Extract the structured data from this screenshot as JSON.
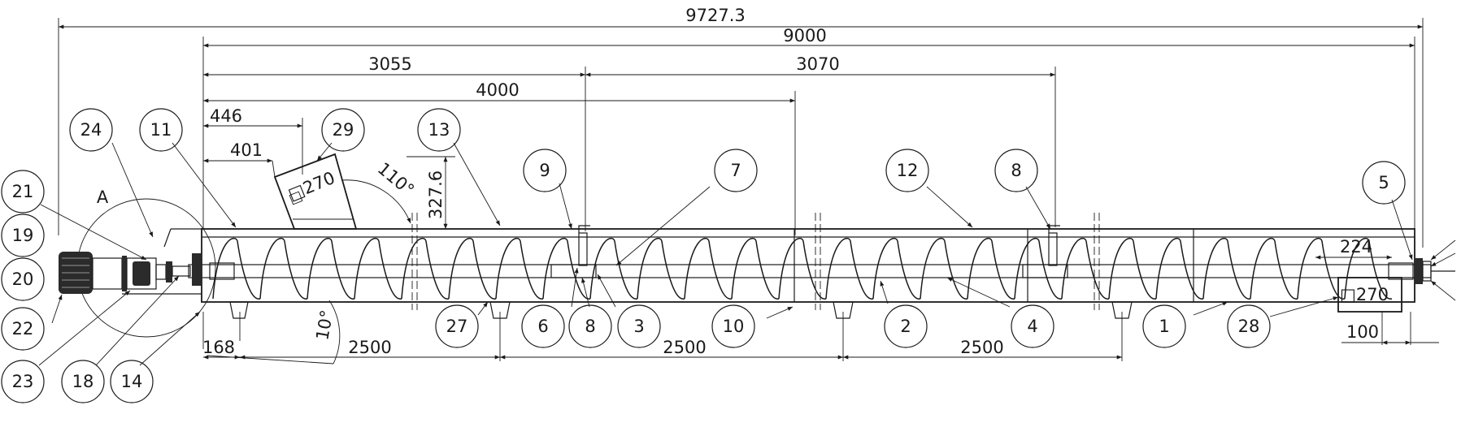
{
  "dimensions": {
    "overall": "9727.3",
    "trough_length": "9000",
    "d3055": "3055",
    "d3070": "3070",
    "d4000": "4000",
    "d446": "446",
    "d401": "401",
    "angle_inlet": "110°",
    "inlet_height": "327.6",
    "inlet_size": "□270",
    "d224": "224",
    "outlet_size": "□270",
    "d100": "100",
    "d168": "168",
    "pitch1": "2500",
    "pitch2": "2500",
    "pitch3": "2500",
    "incline": "10°"
  },
  "detail_label": "A",
  "balloons": {
    "b24": "24",
    "b11": "11",
    "b29": "29",
    "b13": "13",
    "b9": "9",
    "b7": "7",
    "b12": "12",
    "b8a": "8",
    "b5": "5",
    "b21": "21",
    "b19": "19",
    "b20": "20",
    "b22": "22",
    "b23": "23",
    "b18": "18",
    "b14": "14",
    "b27": "27",
    "b6": "6",
    "b8b": "8",
    "b3": "3",
    "b10": "10",
    "b2": "2",
    "b4": "4",
    "b1": "1",
    "b28": "28"
  }
}
